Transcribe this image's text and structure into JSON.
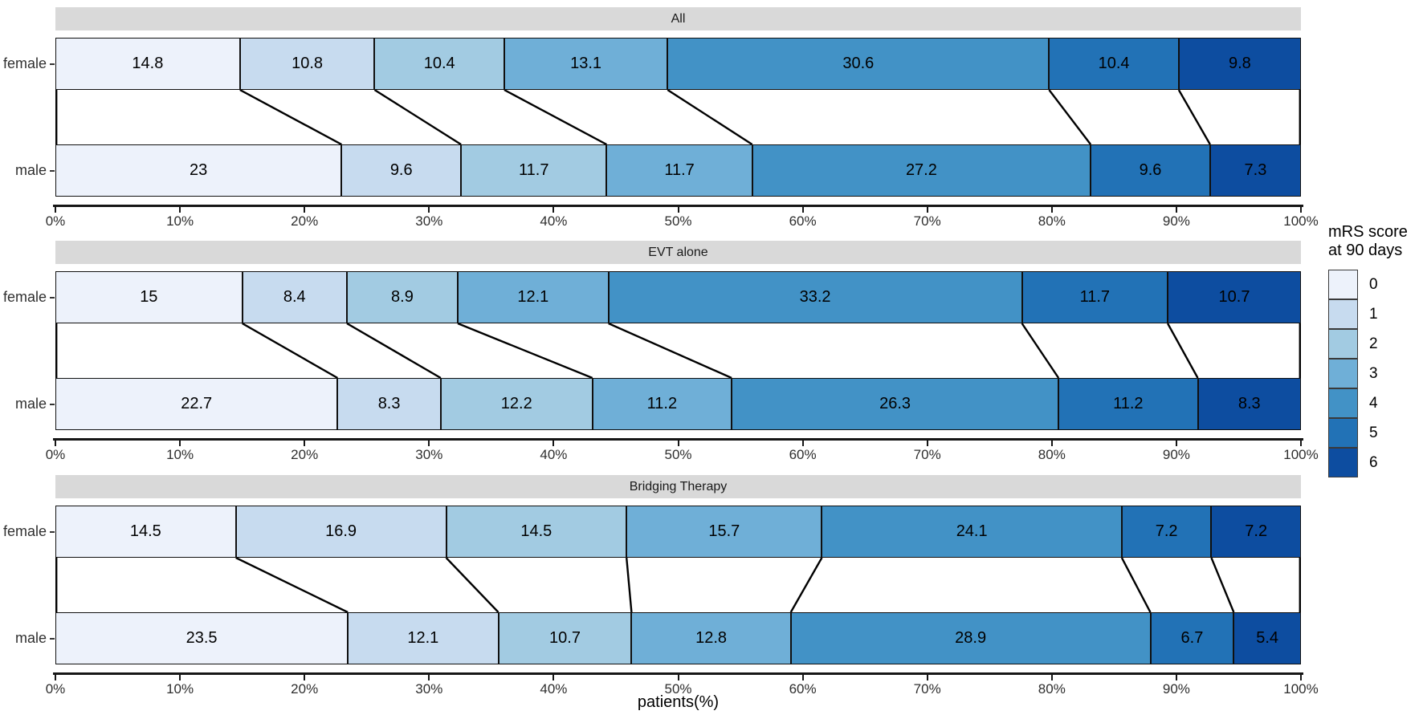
{
  "legend": {
    "title_line1": "mRS score",
    "title_line2": "at 90 days",
    "items": [
      {
        "label": "0",
        "color": "#EDF2FB"
      },
      {
        "label": "1",
        "color": "#C7DBEF"
      },
      {
        "label": "2",
        "color": "#A2CBE2"
      },
      {
        "label": "3",
        "color": "#6FAFD7"
      },
      {
        "label": "4",
        "color": "#4292C6"
      },
      {
        "label": "5",
        "color": "#2272B6"
      },
      {
        "label": "6",
        "color": "#0D4DA0"
      }
    ]
  },
  "chart_data": {
    "type": "bar",
    "variant": "horizontal_stacked_percent_with_flow_connectors",
    "title": "",
    "xlabel": "patients(%)",
    "ylabel": "",
    "xlim": [
      0,
      100
    ],
    "x_tick_labels": [
      "0%",
      "10%",
      "20%",
      "30%",
      "40%",
      "50%",
      "60%",
      "70%",
      "80%",
      "90%",
      "100%"
    ],
    "grid": false,
    "legend_position": "right",
    "legend_title": "mRS score at 90 days",
    "stack_categories": [
      "0",
      "1",
      "2",
      "3",
      "4",
      "5",
      "6"
    ],
    "colors": [
      "#EDF2FB",
      "#C7DBEF",
      "#A2CBE2",
      "#6FAFD7",
      "#4292C6",
      "#2272B6",
      "#0D4DA0"
    ],
    "strip_background": "#d9d9d9",
    "connector_lines": true,
    "panels": [
      {
        "title": "All",
        "rows": [
          {
            "label": "female",
            "values": [
              14.8,
              10.8,
              10.4,
              13.1,
              30.6,
              10.4,
              9.8
            ]
          },
          {
            "label": "male",
            "values": [
              23,
              9.6,
              11.7,
              11.7,
              27.2,
              9.6,
              7.3
            ]
          }
        ]
      },
      {
        "title": "EVT alone",
        "rows": [
          {
            "label": "female",
            "values": [
              15,
              8.4,
              8.9,
              12.1,
              33.2,
              11.7,
              10.7
            ]
          },
          {
            "label": "male",
            "values": [
              22.7,
              8.3,
              12.2,
              11.2,
              26.3,
              11.2,
              8.3
            ]
          }
        ]
      },
      {
        "title": "Bridging Therapy",
        "rows": [
          {
            "label": "female",
            "values": [
              14.5,
              16.9,
              14.5,
              15.7,
              24.1,
              7.2,
              7.2
            ]
          },
          {
            "label": "male",
            "values": [
              23.5,
              12.1,
              10.7,
              12.8,
              28.9,
              6.7,
              5.4
            ]
          }
        ]
      }
    ]
  }
}
